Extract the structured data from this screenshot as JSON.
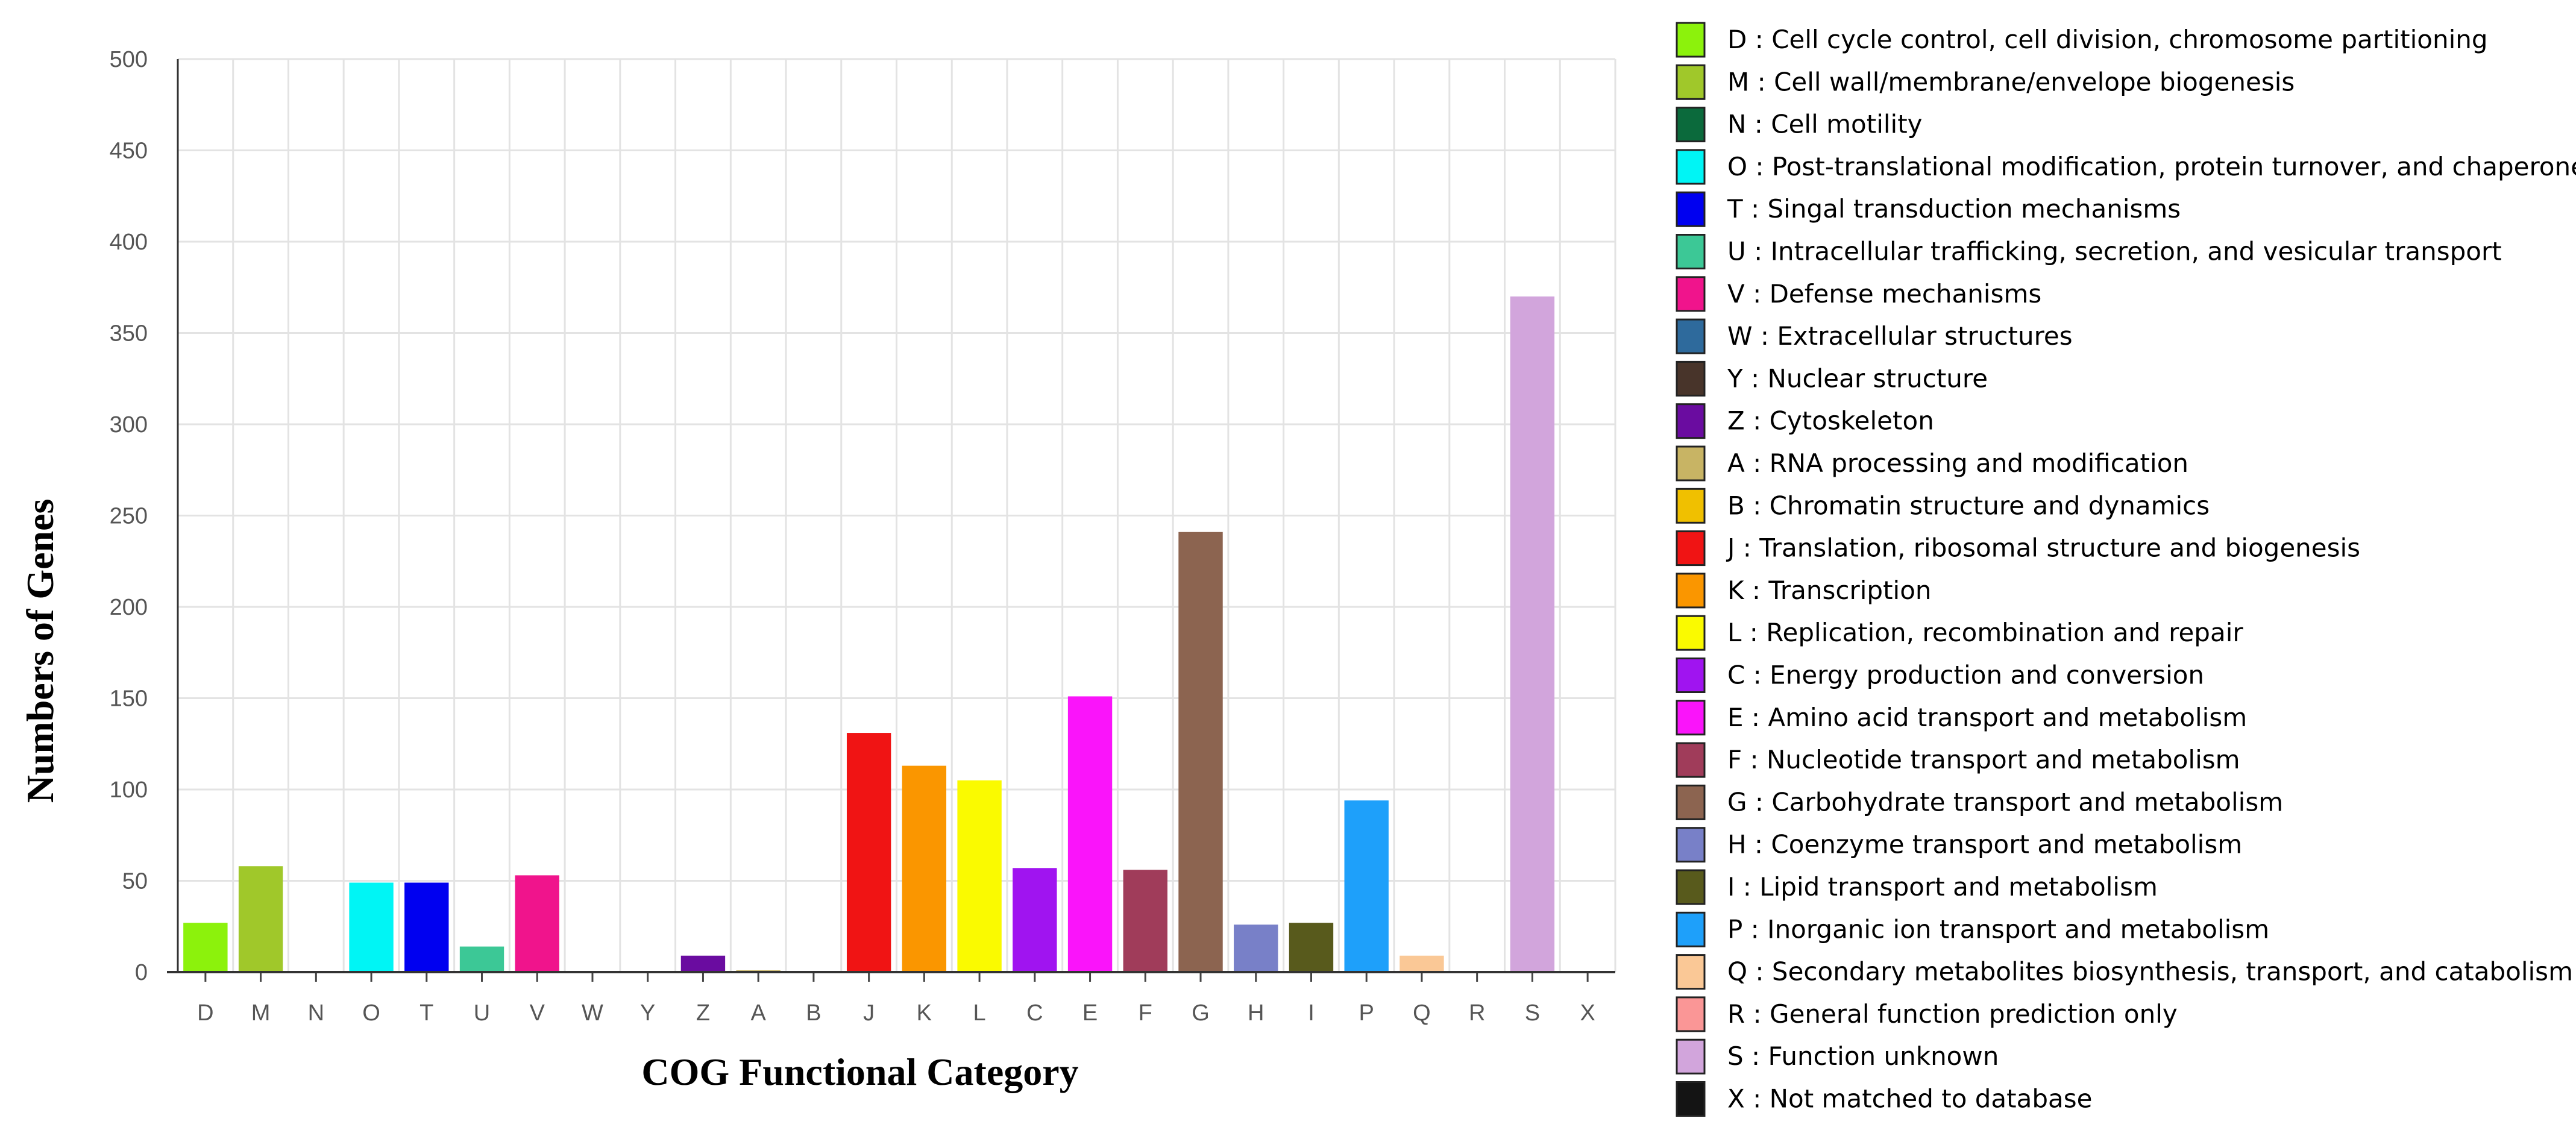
{
  "chart_data": {
    "type": "bar",
    "xlabel": "COG Functional Category",
    "ylabel": "Numbers of Genes",
    "ylim": [
      0,
      500
    ],
    "yticks": [
      0,
      50,
      100,
      150,
      200,
      250,
      300,
      350,
      400,
      450,
      500
    ],
    "grid": true,
    "legend_position": "right",
    "categories": [
      "D",
      "M",
      "N",
      "O",
      "T",
      "U",
      "V",
      "W",
      "Y",
      "Z",
      "A",
      "B",
      "J",
      "K",
      "L",
      "C",
      "E",
      "F",
      "G",
      "H",
      "I",
      "P",
      "Q",
      "R",
      "S",
      "X"
    ],
    "values": [
      27,
      58,
      0,
      49,
      49,
      14,
      53,
      0,
      0,
      9,
      1,
      0,
      131,
      113,
      105,
      57,
      151,
      56,
      241,
      26,
      27,
      94,
      9,
      0,
      370,
      0
    ],
    "colors": [
      "#8cf20c",
      "#a0c82a",
      "#0b6a3c",
      "#00f5f5",
      "#0000f0",
      "#3cc896",
      "#f0148c",
      "#2e6a9c",
      "#48342a",
      "#6a0ca0",
      "#c8b464",
      "#f0c000",
      "#f01414",
      "#fa9600",
      "#fafa00",
      "#a014f0",
      "#fa14fa",
      "#a03c5a",
      "#8c6450",
      "#7880c8",
      "#585a1c",
      "#1ea0fa",
      "#fac896",
      "#fa9696",
      "#d2a5dc",
      "#141414"
    ],
    "legend": [
      {
        "key": "D",
        "label": "D : Cell cycle control, cell division, chromosome partitioning"
      },
      {
        "key": "M",
        "label": "M : Cell wall/membrane/envelope biogenesis"
      },
      {
        "key": "N",
        "label": "N : Cell motility"
      },
      {
        "key": "O",
        "label": "O : Post-translational modification, protein turnover, and chaperones"
      },
      {
        "key": "T",
        "label": "T : Singal transduction mechanisms"
      },
      {
        "key": "U",
        "label": "U : Intracellular trafficking, secretion, and vesicular transport"
      },
      {
        "key": "V",
        "label": "V : Defense mechanisms"
      },
      {
        "key": "W",
        "label": "W : Extracellular structures"
      },
      {
        "key": "Y",
        "label": "Y : Nuclear structure"
      },
      {
        "key": "Z",
        "label": "Z : Cytoskeleton"
      },
      {
        "key": "A",
        "label": "A : RNA processing and modification"
      },
      {
        "key": "B",
        "label": "B : Chromatin structure and dynamics"
      },
      {
        "key": "J",
        "label": "J : Translation, ribosomal structure and biogenesis"
      },
      {
        "key": "K",
        "label": "K : Transcription"
      },
      {
        "key": "L",
        "label": "L : Replication, recombination and repair"
      },
      {
        "key": "C",
        "label": "C : Energy production and conversion"
      },
      {
        "key": "E",
        "label": "E : Amino acid transport and metabolism"
      },
      {
        "key": "F",
        "label": "F : Nucleotide transport and metabolism"
      },
      {
        "key": "G",
        "label": "G : Carbohydrate transport and metabolism"
      },
      {
        "key": "H",
        "label": "H : Coenzyme transport and metabolism"
      },
      {
        "key": "I",
        "label": "I : Lipid transport and metabolism"
      },
      {
        "key": "P",
        "label": "P : Inorganic ion transport and metabolism"
      },
      {
        "key": "Q",
        "label": "Q : Secondary metabolites biosynthesis, transport, and catabolism"
      },
      {
        "key": "R",
        "label": "R : General function prediction only"
      },
      {
        "key": "S",
        "label": "S : Function unknown"
      },
      {
        "key": "X",
        "label": "X : Not matched to database"
      }
    ]
  }
}
